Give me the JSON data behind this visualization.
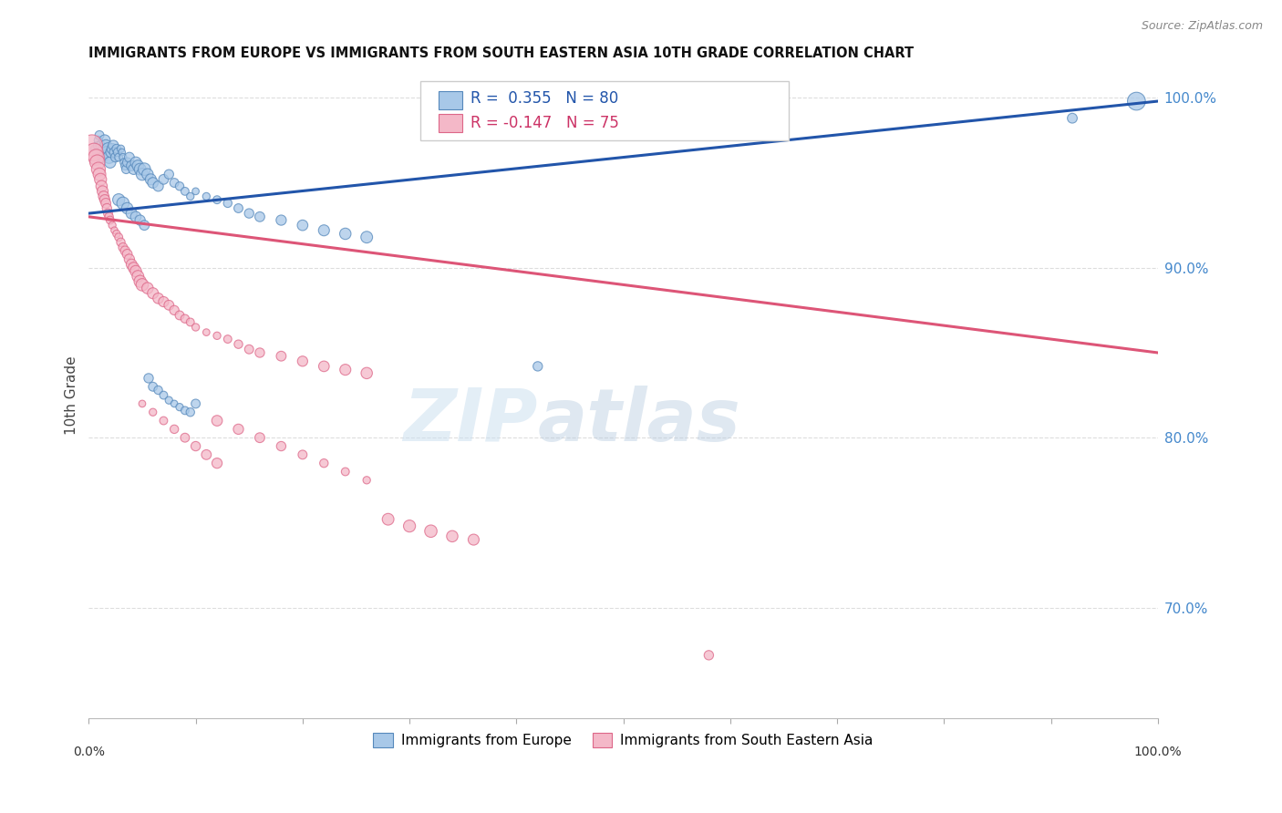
{
  "title": "IMMIGRANTS FROM EUROPE VS IMMIGRANTS FROM SOUTH EASTERN ASIA 10TH GRADE CORRELATION CHART",
  "source": "Source: ZipAtlas.com",
  "ylabel": "10th Grade",
  "right_yticks": [
    "100.0%",
    "90.0%",
    "80.0%",
    "70.0%"
  ],
  "right_ytick_vals": [
    1.0,
    0.9,
    0.8,
    0.7
  ],
  "blue_R": 0.355,
  "blue_N": 80,
  "pink_R": -0.147,
  "pink_N": 75,
  "blue_color": "#a8c8e8",
  "pink_color": "#f4b8c8",
  "blue_edge_color": "#5588bb",
  "pink_edge_color": "#dd6688",
  "blue_line_color": "#2255aa",
  "pink_line_color": "#dd5577",
  "legend_label_blue": "Immigrants from Europe",
  "legend_label_pink": "Immigrants from South Eastern Asia",
  "blue_scatter_x": [
    0.005,
    0.007,
    0.008,
    0.009,
    0.01,
    0.011,
    0.012,
    0.013,
    0.014,
    0.015,
    0.016,
    0.017,
    0.018,
    0.019,
    0.02,
    0.021,
    0.022,
    0.023,
    0.024,
    0.025,
    0.026,
    0.027,
    0.028,
    0.03,
    0.031,
    0.032,
    0.033,
    0.034,
    0.035,
    0.036,
    0.038,
    0.04,
    0.042,
    0.044,
    0.046,
    0.048,
    0.05,
    0.052,
    0.055,
    0.058,
    0.06,
    0.065,
    0.07,
    0.075,
    0.08,
    0.085,
    0.09,
    0.095,
    0.1,
    0.11,
    0.12,
    0.13,
    0.14,
    0.15,
    0.16,
    0.18,
    0.2,
    0.22,
    0.24,
    0.26,
    0.028,
    0.032,
    0.036,
    0.04,
    0.044,
    0.048,
    0.052,
    0.056,
    0.06,
    0.065,
    0.07,
    0.075,
    0.08,
    0.085,
    0.09,
    0.095,
    0.1,
    0.42,
    0.92,
    0.98
  ],
  "blue_scatter_y": [
    0.97,
    0.968,
    0.972,
    0.975,
    0.978,
    0.972,
    0.968,
    0.965,
    0.97,
    0.975,
    0.972,
    0.968,
    0.97,
    0.965,
    0.962,
    0.968,
    0.97,
    0.972,
    0.968,
    0.965,
    0.97,
    0.968,
    0.965,
    0.97,
    0.968,
    0.965,
    0.962,
    0.96,
    0.958,
    0.962,
    0.965,
    0.96,
    0.958,
    0.962,
    0.96,
    0.958,
    0.955,
    0.958,
    0.955,
    0.952,
    0.95,
    0.948,
    0.952,
    0.955,
    0.95,
    0.948,
    0.945,
    0.942,
    0.945,
    0.942,
    0.94,
    0.938,
    0.935,
    0.932,
    0.93,
    0.928,
    0.925,
    0.922,
    0.92,
    0.918,
    0.94,
    0.938,
    0.935,
    0.932,
    0.93,
    0.928,
    0.925,
    0.835,
    0.83,
    0.828,
    0.825,
    0.822,
    0.82,
    0.818,
    0.816,
    0.815,
    0.82,
    0.842,
    0.988,
    0.998
  ],
  "blue_scatter_sizes": [
    30,
    35,
    40,
    45,
    50,
    55,
    60,
    65,
    70,
    75,
    80,
    85,
    90,
    95,
    80,
    75,
    70,
    65,
    60,
    55,
    50,
    45,
    40,
    35,
    30,
    35,
    40,
    45,
    50,
    55,
    60,
    65,
    70,
    75,
    80,
    85,
    90,
    95,
    80,
    75,
    70,
    65,
    60,
    55,
    50,
    45,
    40,
    35,
    30,
    35,
    40,
    45,
    50,
    55,
    60,
    65,
    70,
    75,
    80,
    85,
    90,
    95,
    80,
    75,
    70,
    65,
    60,
    55,
    50,
    45,
    40,
    35,
    30,
    35,
    40,
    45,
    50,
    55,
    60,
    200
  ],
  "pink_scatter_x": [
    0.003,
    0.005,
    0.007,
    0.008,
    0.009,
    0.01,
    0.011,
    0.012,
    0.013,
    0.014,
    0.015,
    0.016,
    0.017,
    0.018,
    0.019,
    0.02,
    0.022,
    0.024,
    0.026,
    0.028,
    0.03,
    0.032,
    0.034,
    0.036,
    0.038,
    0.04,
    0.042,
    0.044,
    0.046,
    0.048,
    0.05,
    0.055,
    0.06,
    0.065,
    0.07,
    0.075,
    0.08,
    0.085,
    0.09,
    0.095,
    0.1,
    0.11,
    0.12,
    0.13,
    0.14,
    0.15,
    0.16,
    0.18,
    0.2,
    0.22,
    0.24,
    0.26,
    0.28,
    0.3,
    0.32,
    0.34,
    0.36,
    0.12,
    0.14,
    0.16,
    0.18,
    0.2,
    0.22,
    0.24,
    0.26,
    0.05,
    0.06,
    0.07,
    0.08,
    0.09,
    0.1,
    0.11,
    0.12,
    0.58
  ],
  "pink_scatter_y": [
    0.972,
    0.968,
    0.965,
    0.962,
    0.958,
    0.955,
    0.952,
    0.948,
    0.945,
    0.942,
    0.94,
    0.938,
    0.935,
    0.932,
    0.93,
    0.928,
    0.925,
    0.922,
    0.92,
    0.918,
    0.915,
    0.912,
    0.91,
    0.908,
    0.905,
    0.902,
    0.9,
    0.898,
    0.895,
    0.892,
    0.89,
    0.888,
    0.885,
    0.882,
    0.88,
    0.878,
    0.875,
    0.872,
    0.87,
    0.868,
    0.865,
    0.862,
    0.86,
    0.858,
    0.855,
    0.852,
    0.85,
    0.848,
    0.845,
    0.842,
    0.84,
    0.838,
    0.752,
    0.748,
    0.745,
    0.742,
    0.74,
    0.81,
    0.805,
    0.8,
    0.795,
    0.79,
    0.785,
    0.78,
    0.775,
    0.82,
    0.815,
    0.81,
    0.805,
    0.8,
    0.795,
    0.79,
    0.785,
    0.672
  ],
  "pink_scatter_sizes": [
    280,
    200,
    160,
    140,
    120,
    100,
    90,
    80,
    75,
    70,
    65,
    60,
    55,
    50,
    45,
    40,
    35,
    30,
    35,
    40,
    45,
    50,
    55,
    60,
    65,
    70,
    75,
    80,
    85,
    90,
    95,
    80,
    75,
    70,
    65,
    60,
    55,
    50,
    45,
    40,
    35,
    30,
    35,
    40,
    45,
    50,
    55,
    60,
    65,
    70,
    75,
    80,
    85,
    90,
    95,
    80,
    75,
    70,
    65,
    60,
    55,
    50,
    45,
    40,
    35,
    30,
    35,
    40,
    45,
    50,
    55,
    60,
    65,
    55
  ],
  "xlim": [
    0.0,
    1.0
  ],
  "ylim": [
    0.635,
    1.015
  ],
  "blue_trend_x": [
    0.0,
    1.0
  ],
  "blue_trend_y": [
    0.932,
    0.998
  ],
  "pink_trend_x": [
    0.0,
    1.0
  ],
  "pink_trend_y": [
    0.93,
    0.85
  ],
  "grid_yticks": [
    1.0,
    0.9,
    0.8,
    0.7
  ],
  "background_color": "#ffffff",
  "grid_color": "#dddddd",
  "watermark_zip": "ZIP",
  "watermark_atlas": "atlas"
}
